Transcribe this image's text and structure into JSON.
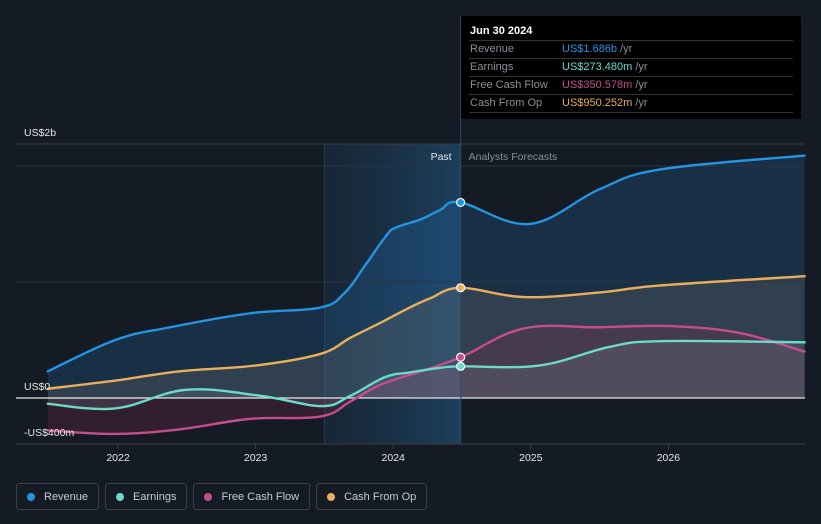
{
  "tooltip": {
    "date": "Jun 30 2024",
    "rows": [
      {
        "label": "Revenue",
        "value": "US$1.686b",
        "unit": "/yr",
        "color": "#2394df"
      },
      {
        "label": "Earnings",
        "value": "US$273.480m",
        "unit": "/yr",
        "color": "#6cdac8"
      },
      {
        "label": "Free Cash Flow",
        "value": "US$350.578m",
        "unit": "/yr",
        "color": "#c64d8c"
      },
      {
        "label": "Cash From Op",
        "value": "US$950.252m",
        "unit": "/yr",
        "color": "#e9ae5b"
      }
    ]
  },
  "legend": [
    {
      "label": "Revenue",
      "color": "#2394df"
    },
    {
      "label": "Earnings",
      "color": "#6cdac8"
    },
    {
      "label": "Free Cash Flow",
      "color": "#c64d8c"
    },
    {
      "label": "Cash From Op",
      "color": "#e9ae5b"
    }
  ],
  "chart_data": {
    "type": "line",
    "title": "",
    "xlabel": "",
    "ylabel": "",
    "x_ticks": [
      2022,
      2023,
      2024,
      2025,
      2026
    ],
    "x_tick_labels": [
      "2022",
      "2023",
      "2024",
      "2025",
      "2026"
    ],
    "xlim": [
      2021.49,
      2027.0
    ],
    "y_ticks": [
      -0.4,
      0,
      2
    ],
    "y_tick_labels": [
      "-US$400m",
      "US$0",
      "US$2b"
    ],
    "ylim": [
      -0.4,
      2.0
    ],
    "y_units": "US$ billions",
    "divider_x": 2024.49,
    "past_highlight_start": 2023.5,
    "region_labels": {
      "past": "Past",
      "forecast": "Analysts Forecasts"
    },
    "highlight_date": 2024.49,
    "series": [
      {
        "name": "Revenue",
        "color": "#2394df",
        "points": [
          [
            2021.49,
            0.23
          ],
          [
            2021.98,
            0.5
          ],
          [
            2022.38,
            0.61
          ],
          [
            2022.96,
            0.73
          ],
          [
            2023.47,
            0.78
          ],
          [
            2023.65,
            0.91
          ],
          [
            2023.8,
            1.15
          ],
          [
            2023.95,
            1.4
          ],
          [
            2024.02,
            1.47
          ],
          [
            2024.2,
            1.54
          ],
          [
            2024.34,
            1.62
          ],
          [
            2024.49,
            1.686
          ],
          [
            2024.99,
            1.5
          ],
          [
            2025.5,
            1.8
          ],
          [
            2025.94,
            1.97
          ],
          [
            2026.99,
            2.09
          ]
        ]
      },
      {
        "name": "Earnings",
        "color": "#6cdac8",
        "points": [
          [
            2021.49,
            -0.05
          ],
          [
            2021.98,
            -0.09
          ],
          [
            2022.49,
            0.07
          ],
          [
            2023.03,
            0.02
          ],
          [
            2023.48,
            -0.07
          ],
          [
            2023.69,
            0.02
          ],
          [
            2023.94,
            0.18
          ],
          [
            2024.12,
            0.22
          ],
          [
            2024.34,
            0.26
          ],
          [
            2024.49,
            0.273
          ],
          [
            2025.06,
            0.28
          ],
          [
            2025.57,
            0.44
          ],
          [
            2025.94,
            0.49
          ],
          [
            2026.99,
            0.48
          ]
        ]
      },
      {
        "name": "Free Cash Flow",
        "color": "#c64d8c",
        "points": [
          [
            2021.49,
            -0.28
          ],
          [
            2021.98,
            -0.31
          ],
          [
            2022.45,
            -0.27
          ],
          [
            2022.96,
            -0.18
          ],
          [
            2023.47,
            -0.16
          ],
          [
            2023.69,
            -0.03
          ],
          [
            2023.9,
            0.11
          ],
          [
            2024.2,
            0.23
          ],
          [
            2024.49,
            0.351
          ],
          [
            2024.95,
            0.6
          ],
          [
            2025.5,
            0.61
          ],
          [
            2026.01,
            0.62
          ],
          [
            2026.52,
            0.56
          ],
          [
            2026.99,
            0.4
          ]
        ]
      },
      {
        "name": "Cash From Op",
        "color": "#e9ae5b",
        "points": [
          [
            2021.49,
            0.08
          ],
          [
            2021.98,
            0.15
          ],
          [
            2022.45,
            0.23
          ],
          [
            2023.0,
            0.28
          ],
          [
            2023.47,
            0.38
          ],
          [
            2023.69,
            0.52
          ],
          [
            2023.91,
            0.65
          ],
          [
            2024.12,
            0.78
          ],
          [
            2024.27,
            0.86
          ],
          [
            2024.49,
            0.95
          ],
          [
            2024.95,
            0.87
          ],
          [
            2025.5,
            0.91
          ],
          [
            2025.94,
            0.97
          ],
          [
            2026.99,
            1.05
          ]
        ]
      }
    ]
  }
}
